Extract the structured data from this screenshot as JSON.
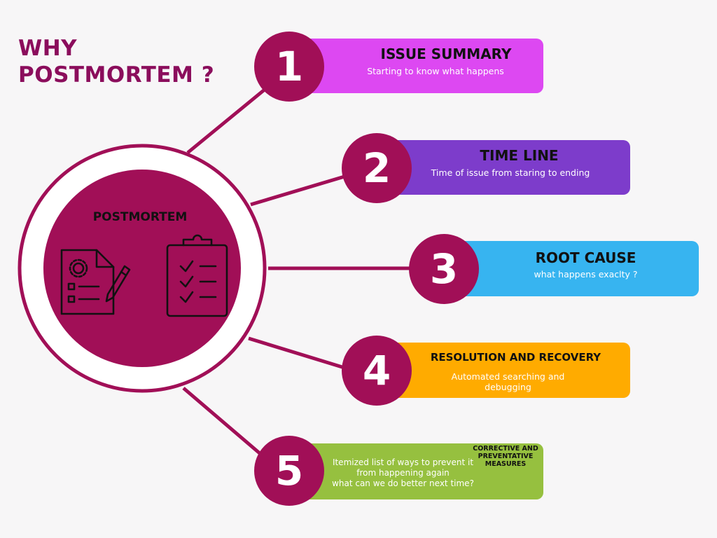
{
  "title": {
    "line1": "WHY",
    "line2": "POSTMORTEM ?"
  },
  "center": {
    "label": "POSTMORTEM",
    "icons": [
      "document-gear-icon",
      "clipboard-checklist-icon"
    ]
  },
  "colors": {
    "primary": "#a10f57",
    "title": "#8b0d5c",
    "step1": "#dd48f2",
    "step2": "#7d3ccb",
    "step3": "#37b4f0",
    "step4": "#ffab00",
    "step5": "#96c03f"
  },
  "steps": [
    {
      "number": "1",
      "heading": "ISSUE SUMMARY",
      "desc": "Starting to know what happens"
    },
    {
      "number": "2",
      "heading": "TIME LINE",
      "desc": "Time of issue from staring to ending"
    },
    {
      "number": "3",
      "heading": "ROOT CAUSE",
      "desc": "what happens exaclty ?"
    },
    {
      "number": "4",
      "heading": "RESOLUTION AND RECOVERY",
      "desc": "Automated searching and debugging"
    },
    {
      "number": "5",
      "heading": "CORRECTIVE AND PREVENTATIVE MEASURES",
      "desc_lines": [
        "Itemized list of ways to prevent it",
        "from happening again",
        "what can we do better next time?"
      ]
    }
  ]
}
